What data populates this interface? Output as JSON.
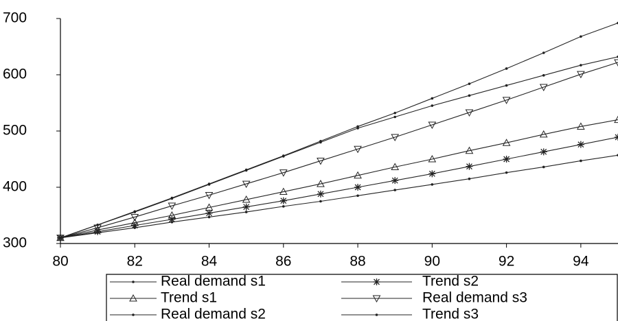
{
  "chart_data": {
    "type": "line",
    "x": [
      80,
      81,
      82,
      83,
      84,
      85,
      86,
      87,
      88,
      89,
      90,
      91,
      92,
      93,
      94,
      95
    ],
    "xlim": [
      80,
      95
    ],
    "xticks": [
      80,
      82,
      84,
      86,
      88,
      90,
      92,
      94
    ],
    "ylim": [
      300,
      700
    ],
    "yticks": [
      300,
      400,
      500,
      600,
      700
    ],
    "series": [
      {
        "name": "Real demand s1",
        "color": "#222222",
        "marker": "dot",
        "values": [
          310,
          333,
          357,
          381,
          406,
          431,
          456,
          482,
          508,
          532,
          558,
          584,
          611,
          639,
          668,
          692
        ]
      },
      {
        "name": "Trend s2",
        "color": "#222222",
        "marker": "star",
        "values": [
          310,
          321,
          332,
          343,
          354,
          365,
          376,
          388,
          400,
          412,
          424,
          437,
          450,
          463,
          476,
          489
        ]
      },
      {
        "name": "Trend s1",
        "color": "#222222",
        "marker": "triangle-up",
        "values": [
          310,
          324,
          337,
          350,
          364,
          378,
          392,
          406,
          421,
          436,
          450,
          465,
          479,
          494,
          508,
          520
        ]
      },
      {
        "name": "Real demand s3",
        "color": "#222222",
        "marker": "triangle-down",
        "values": [
          310,
          328,
          347,
          367,
          386,
          406,
          426,
          447,
          468,
          489,
          511,
          533,
          555,
          578,
          601,
          622
        ]
      },
      {
        "name": "Real demand s2",
        "color": "#222222",
        "marker": "dot",
        "values": [
          310,
          333,
          356,
          380,
          405,
          430,
          455,
          480,
          505,
          525,
          545,
          563,
          581,
          599,
          617,
          632
        ]
      },
      {
        "name": "Trend s3",
        "color": "#222222",
        "marker": "dot",
        "values": [
          310,
          319,
          328,
          338,
          347,
          356,
          366,
          375,
          385,
          395,
          405,
          415,
          426,
          436,
          447,
          457
        ]
      }
    ]
  }
}
